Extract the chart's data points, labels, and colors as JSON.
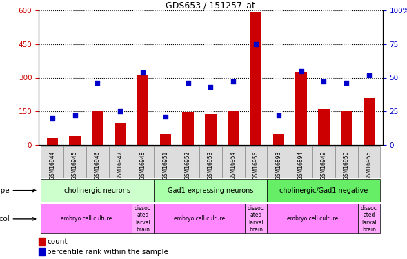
{
  "title": "GDS653 / 151257_at",
  "samples": [
    "GSM16944",
    "GSM16945",
    "GSM16946",
    "GSM16947",
    "GSM16948",
    "GSM16951",
    "GSM16952",
    "GSM16953",
    "GSM16954",
    "GSM16956",
    "GSM16893",
    "GSM16894",
    "GSM16949",
    "GSM16950",
    "GSM16955"
  ],
  "counts": [
    30,
    40,
    155,
    100,
    315,
    50,
    148,
    140,
    150,
    595,
    50,
    325,
    160,
    150,
    210
  ],
  "percentiles": [
    20,
    22,
    46,
    25,
    54,
    21,
    46,
    43,
    47,
    75,
    22,
    55,
    47,
    46,
    52
  ],
  "ylim_left": [
    0,
    600
  ],
  "ylim_right": [
    0,
    100
  ],
  "yticks_left": [
    0,
    150,
    300,
    450,
    600
  ],
  "yticks_right": [
    0,
    25,
    50,
    75,
    100
  ],
  "bar_color": "#cc0000",
  "dot_color": "#0000cc",
  "chart_bg": "#ffffff",
  "cell_types": [
    {
      "label": "cholinergic neurons",
      "start": 0,
      "end": 5,
      "color": "#ccffcc"
    },
    {
      "label": "Gad1 expressing neurons",
      "start": 5,
      "end": 10,
      "color": "#aaffaa"
    },
    {
      "label": "cholinergic/Gad1 negative",
      "start": 10,
      "end": 15,
      "color": "#66ee66"
    }
  ],
  "protocols": [
    {
      "label": "embryo cell culture",
      "start": 0,
      "end": 4,
      "color": "#ff88ff"
    },
    {
      "label": "dissoc\nated\nlarval\nbrain",
      "start": 4,
      "end": 5,
      "color": "#ffaaff"
    },
    {
      "label": "embryo cell culture",
      "start": 5,
      "end": 9,
      "color": "#ff88ff"
    },
    {
      "label": "dissoc\nated\nlarval\nbrain",
      "start": 9,
      "end": 10,
      "color": "#ffaaff"
    },
    {
      "label": "embryo cell culture",
      "start": 10,
      "end": 14,
      "color": "#ff88ff"
    },
    {
      "label": "dissoc\nated\nlarval\nbrain",
      "start": 14,
      "end": 15,
      "color": "#ffaaff"
    }
  ],
  "legend_items": [
    {
      "color": "#cc0000",
      "label": "count"
    },
    {
      "color": "#0000cc",
      "label": "percentile rank within the sample"
    }
  ],
  "axis_color_left": "#cc0000",
  "axis_color_right": "#0000cc"
}
